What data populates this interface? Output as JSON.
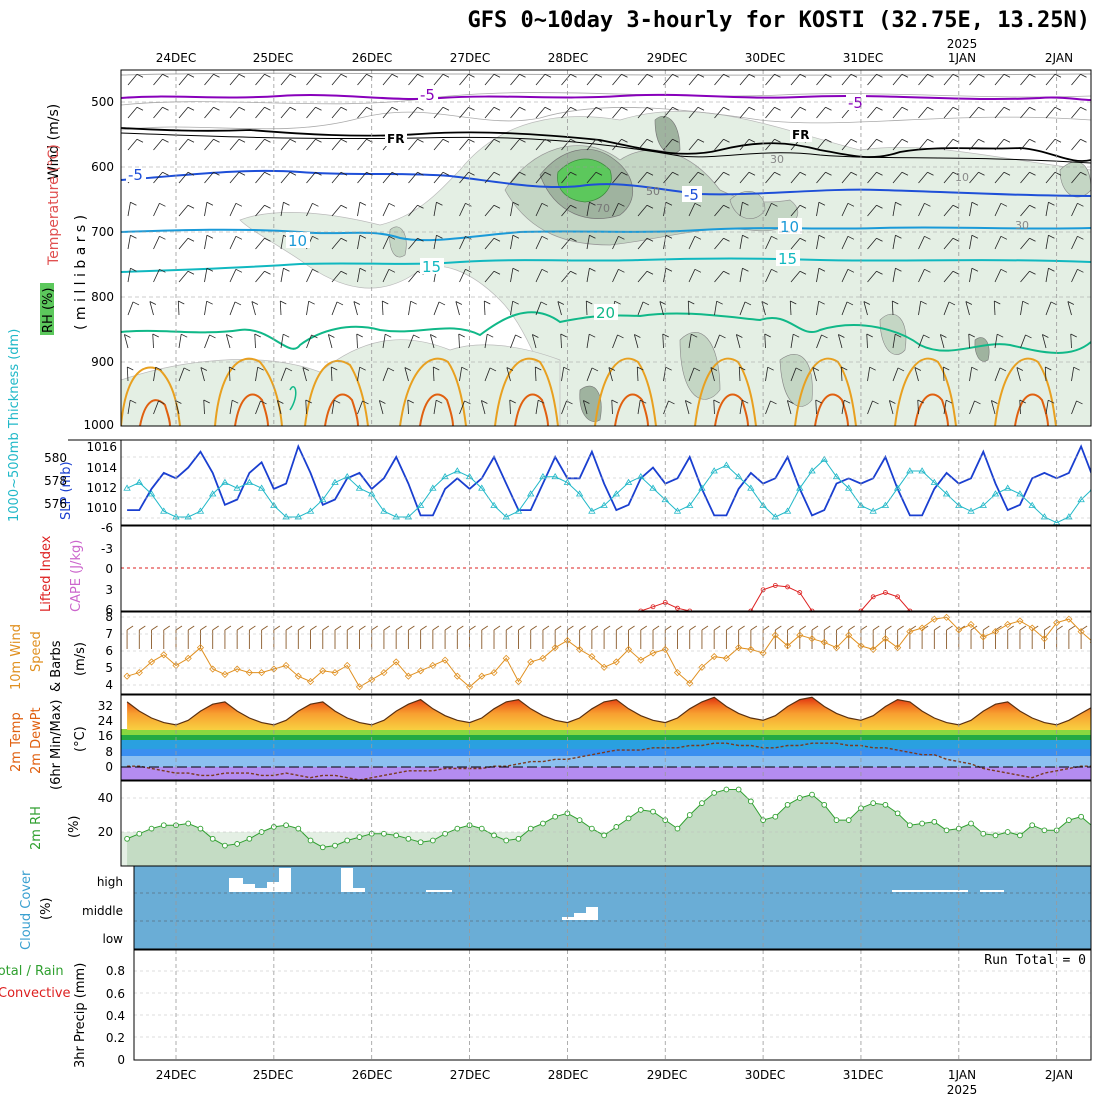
{
  "title": "GFS 0~10day 3-hourly for KOSTI (32.75E, 13.25N)",
  "colors": {
    "frame": "#000000",
    "grid": "#999999",
    "rh_light": "#e4efe4",
    "rh_mid": "#c4d6c4",
    "rh_dark": "#9fb39f",
    "rh_wet": "#5cc85c",
    "temp_m5_upper": "#8800bb",
    "temp_freezing": "#000000",
    "temp_m5": "#1e4fd8",
    "temp_10": "#1a9ad8",
    "temp_15": "#10b8c0",
    "temp_20": "#10b888",
    "temp_warm": "#e8a020",
    "temp_hot": "#e06010",
    "slp": "#1a3fd0",
    "thickness": "#20b8c8",
    "lifted_index": "#dd2020",
    "wind10": "#e09020",
    "barbs": "#8a5a2a",
    "cloud_bg": "#6aadd6",
    "rh2m": "#30a030"
  },
  "x_axis": {
    "top_labels": [
      "24DEC",
      "25DEC",
      "26DEC",
      "27DEC",
      "28DEC",
      "29DEC",
      "30DEC",
      "31DEC",
      "1JAN",
      "2JAN"
    ],
    "year_label": "2025",
    "bottom_labels": [
      "24DEC",
      "25DEC",
      "26DEC",
      "27DEC",
      "28DEC",
      "29DEC",
      "30DEC",
      "31DEC",
      "1JAN",
      "2JAN"
    ]
  },
  "panels": {
    "upper": {
      "label_wind": "Wind (m/s)",
      "label_temp": "Temperature (°C)",
      "label_rh": "RH (%)",
      "label_mb": "( m i l l i b a r s )",
      "y_ticks": [
        "500",
        "600",
        "700",
        "800",
        "900",
        "1000"
      ],
      "contour_labels": [
        "-5",
        "-5",
        "FR",
        "FR",
        "-5",
        "-5",
        "10",
        "10",
        "15",
        "15",
        "20",
        "30",
        "10",
        "30",
        "50",
        "70"
      ]
    },
    "slp": {
      "label_thk": "1000~500mb Thickness (dm)",
      "label_slp": "SLP (mb)",
      "left_ticks": [
        "580",
        "578",
        "576"
      ],
      "right_ticks": [
        "1016",
        "1014",
        "1012",
        "1010"
      ]
    },
    "cape": {
      "label_li": "Lifted Index",
      "label_cape": "CAPE (J/kg)",
      "ticks": [
        "-6",
        "-3",
        "0",
        "3",
        "6"
      ]
    },
    "wind10": {
      "label_a": "10m Wind",
      "label_b": "Speed",
      "label_c": "& Barbs",
      "label_unit": "(m/s)",
      "ticks": [
        "8",
        "7",
        "6",
        "5",
        "4"
      ]
    },
    "temp2m": {
      "label_a": "2m Temp",
      "label_b": "2m DewPt",
      "label_c": "(6hr Min/Max)",
      "label_unit": "(°C)",
      "ticks": [
        "32",
        "24",
        "16",
        "8",
        "0"
      ]
    },
    "rh2m": {
      "label_a": "2m RH",
      "label_unit": "(%)",
      "ticks": [
        "40",
        "20"
      ]
    },
    "cloud": {
      "label_a": "Cloud Cover",
      "label_unit": "(%)",
      "ticks": [
        "high",
        "middle",
        "low"
      ]
    },
    "precip": {
      "label_a": "Total / Rain",
      "label_b": "Convective",
      "label_c": "3hr Precip (mm)",
      "ticks": [
        "0.8",
        "0.6",
        "0.4",
        "0.2",
        "0"
      ],
      "run_total": "Run Total = 0"
    }
  },
  "chart_data": [
    {
      "type": "line",
      "title": "SLP (mb)",
      "x_unit": "hours since 24DEC 00Z",
      "x_start": -12,
      "x_step": 3,
      "ylim": [
        1008.6,
        1016.6
      ],
      "values": [
        1010.0,
        1010.0,
        1012.0,
        1013.5,
        1013.0,
        1014.0,
        1015.5,
        1013.5,
        1010.5,
        1011.0,
        1013.5,
        1014.5,
        1012.0,
        1012.5,
        1016.0,
        1013.5,
        1010.5,
        1011.0,
        1013.0,
        1013.5,
        1012.0,
        1013.0,
        1015.0,
        1012.5,
        1009.5,
        1009.5,
        1012.0,
        1013.0,
        1012.0,
        1013.0,
        1015.0,
        1012.5,
        1010.0,
        1010.0,
        1012.5,
        1015.0,
        1013.0,
        1013.0,
        1015.5,
        1012.5,
        1010.0,
        1010.5,
        1013.0,
        1014.0,
        1012.5,
        1013.0,
        1015.0,
        1012.0,
        1009.5,
        1009.5,
        1012.0,
        1013.5,
        1012.5,
        1013.0,
        1015.0,
        1012.0,
        1009.5,
        1010.0,
        1012.5,
        1013.0,
        1012.5,
        1013.0,
        1015.0,
        1012.0,
        1009.5,
        1009.5,
        1012.0,
        1013.5,
        1012.5,
        1013.0,
        1015.5,
        1012.5,
        1010.0,
        1010.5,
        1013.0,
        1013.5,
        1013.0,
        1013.5,
        1016.0,
        1013.0,
        1010.5,
        1011.5,
        1013.5,
        1013.0,
        1013.5,
        1015.5
      ]
    },
    {
      "type": "line",
      "title": "1000~500mb Thickness (dm)",
      "x_unit": "hours since 24DEC 00Z",
      "x_start": -12,
      "x_step": 3,
      "ylim": [
        574.8,
        582.2
      ],
      "values": [
        578.0,
        578.5,
        577.5,
        576.0,
        575.5,
        575.5,
        576.0,
        577.5,
        578.5,
        578.0,
        578.5,
        578.0,
        576.5,
        575.5,
        575.5,
        576.0,
        577.0,
        578.5,
        579.0,
        578.0,
        577.5,
        576.0,
        575.5,
        575.5,
        576.5,
        578.0,
        579.0,
        579.5,
        579.0,
        578.0,
        576.5,
        575.5,
        576.0,
        577.5,
        579.0,
        579.0,
        578.5,
        577.5,
        576.0,
        576.5,
        577.5,
        578.5,
        579.0,
        578.0,
        577.0,
        576.0,
        576.5,
        578.0,
        579.5,
        580.0,
        579.0,
        578.0,
        576.5,
        575.5,
        576.0,
        578.0,
        579.5,
        580.5,
        579.0,
        578.0,
        576.5,
        576.0,
        576.5,
        578.0,
        579.5,
        579.5,
        578.5,
        577.5,
        576.5,
        576.0,
        576.5,
        577.5,
        578.0,
        577.5,
        576.5,
        575.5,
        575.0,
        575.5,
        577.0,
        578.0,
        577.5,
        576.0,
        575.0,
        575.0,
        575.5,
        576.0
      ]
    },
    {
      "type": "line",
      "title": "10m Wind Speed (m/s)",
      "x_unit": "hours since 24DEC 00Z",
      "x_start": -12,
      "x_step": 3,
      "ylim": [
        3.6,
        8.2
      ],
      "values": [
        4.6,
        4.8,
        5.4,
        5.8,
        5.2,
        5.6,
        6.2,
        5.0,
        4.7,
        5.0,
        4.8,
        4.8,
        5.0,
        5.2,
        4.6,
        4.3,
        4.9,
        4.8,
        5.2,
        4.0,
        4.4,
        4.8,
        5.4,
        4.6,
        4.9,
        5.2,
        5.5,
        4.6,
        4.0,
        4.6,
        4.8,
        5.6,
        4.3,
        5.4,
        5.6,
        6.2,
        6.6,
        6.1,
        5.7,
        5.1,
        5.4,
        6.1,
        5.5,
        5.9,
        6.1,
        4.8,
        4.2,
        5.1,
        5.7,
        5.6,
        6.2,
        6.1,
        5.9,
        6.9,
        6.3,
        6.9,
        6.7,
        6.5,
        6.2,
        6.9,
        6.3,
        6.1,
        6.7,
        6.2,
        7.1,
        7.3,
        7.8,
        7.9,
        7.2,
        7.5,
        6.8,
        7.1,
        7.5,
        7.7,
        7.3,
        6.7,
        7.6,
        7.8,
        7.1,
        6.5,
        6.7,
        6.9,
        7.5,
        6.9,
        6.0,
        6.6
      ]
    },
    {
      "type": "area",
      "title": "2m Temp (°C)",
      "x_unit": "hours since 24DEC 00Z",
      "x_start": -12,
      "x_step": 3,
      "ylim": [
        -3,
        34
      ],
      "values": [
        31,
        27,
        24,
        22,
        21,
        23,
        27,
        30,
        31,
        27,
        24,
        22,
        21,
        23,
        27,
        30,
        31,
        27,
        24,
        22,
        21,
        23,
        27,
        30,
        32,
        28,
        25,
        23,
        22,
        24,
        28,
        31,
        32,
        28,
        25,
        23,
        22,
        24,
        28,
        31,
        32,
        28,
        25,
        23,
        22,
        24,
        28,
        31,
        33,
        29,
        26,
        24,
        23,
        25,
        29,
        32,
        33,
        29,
        26,
        24,
        23,
        25,
        29,
        32,
        31,
        27,
        24,
        22,
        21,
        23,
        27,
        30,
        31,
        27,
        24,
        22,
        21,
        23,
        26,
        29,
        30,
        27,
        24,
        22,
        21,
        22
      ]
    },
    {
      "type": "line",
      "title": "2m DewPt (°C)",
      "x_unit": "hours since 24DEC 00Z",
      "x_start": -12,
      "x_step": 3,
      "ylim": [
        -3,
        34
      ],
      "values": [
        3,
        3,
        2,
        1,
        0,
        0,
        -1,
        -1,
        0,
        0,
        0,
        -1,
        -1,
        0,
        -1,
        -2,
        -1,
        -1,
        -2,
        -3,
        -2,
        -1,
        0,
        1,
        1,
        1,
        2,
        2,
        2,
        2,
        3,
        3,
        4,
        5,
        5,
        6,
        6,
        7,
        8,
        9,
        10,
        10,
        10,
        11,
        11,
        11,
        12,
        12,
        13,
        13,
        12,
        12,
        11,
        11,
        12,
        12,
        13,
        13,
        13,
        12,
        12,
        11,
        11,
        10,
        9,
        8,
        8,
        6,
        5,
        4,
        2,
        1,
        0,
        -1,
        -2,
        0,
        1,
        2,
        3,
        3,
        2,
        2,
        1,
        0,
        -1,
        -1
      ]
    },
    {
      "type": "area",
      "title": "2m RH (%)",
      "x_unit": "hours since 24DEC 00Z",
      "x_start": -12,
      "x_step": 3,
      "ylim": [
        0,
        50
      ],
      "values": [
        16,
        19,
        22,
        24,
        24,
        25,
        22,
        16,
        12,
        13,
        16,
        20,
        23,
        24,
        22,
        15,
        11,
        12,
        15,
        17,
        19,
        19,
        18,
        16,
        14,
        15,
        19,
        22,
        24,
        22,
        18,
        15,
        16,
        22,
        25,
        29,
        31,
        27,
        22,
        18,
        23,
        28,
        33,
        32,
        27,
        22,
        30,
        37,
        43,
        45,
        45,
        38,
        27,
        29,
        36,
        40,
        42,
        36,
        27,
        27,
        34,
        37,
        36,
        31,
        24,
        25,
        26,
        21,
        22,
        25,
        19,
        18,
        20,
        18,
        24,
        21,
        21,
        27,
        29,
        23,
        20,
        23,
        27,
        25,
        23,
        22
      ]
    },
    {
      "type": "line",
      "title": "Lifted Index",
      "x_unit": "hours since 24DEC 00Z",
      "x_start": 114,
      "x_step": 3,
      "ylim": [
        6,
        -6
      ],
      "values": [
        6.0,
        5.4,
        4.8,
        5.6,
        6.0
      ]
    },
    {
      "type": "line",
      "title": "Lifted Index",
      "x_unit": "hours since 24DEC 00Z",
      "x_start": 141,
      "x_step": 3,
      "ylim": [
        6,
        -6
      ],
      "values": [
        6.0,
        3.0,
        2.4,
        2.6,
        3.4,
        6.0
      ]
    },
    {
      "type": "line",
      "title": "Lifted Index",
      "x_unit": "hours since 24DEC 00Z",
      "x_start": 168,
      "x_step": 3,
      "ylim": [
        6,
        -6
      ],
      "values": [
        6.0,
        4.0,
        3.4,
        4.0,
        6.0
      ]
    }
  ]
}
